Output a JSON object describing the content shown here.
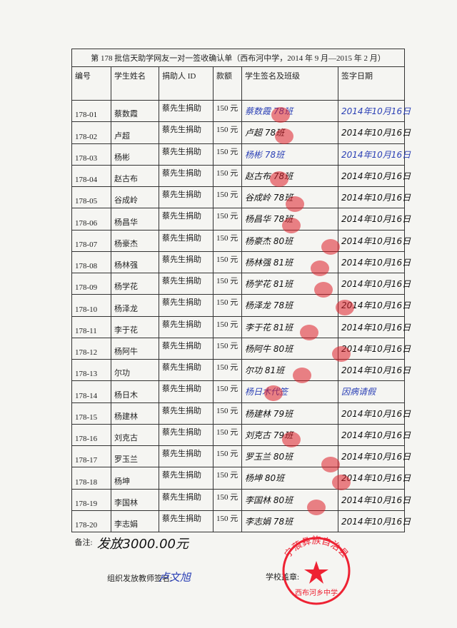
{
  "title": "第 178 批信天助学网友一对一签收确认单（西布河中学，2014 年 9 月—2015 年 2 月）",
  "table": {
    "headers": [
      "编号",
      "学生姓名",
      "捐助人 ID",
      "款额",
      "学生签名及班级",
      "签字日期"
    ],
    "rows": [
      [
        "178-01",
        "蔡数霞",
        "蔡先生捐助",
        "150 元",
        "蔡数霞 78班",
        "2014年10月16日"
      ],
      [
        "178-02",
        "卢超",
        "蔡先生捐助",
        "150 元",
        "卢超 78班",
        "2014年10月16日"
      ],
      [
        "178-03",
        "杨彬",
        "蔡先生捐助",
        "150 元",
        "杨彬 78班",
        "2014年10月16日"
      ],
      [
        "178-04",
        "赵古布",
        "蔡先生捐助",
        "150 元",
        "赵古布 78班",
        "2014年10月16日"
      ],
      [
        "178-05",
        "谷成岭",
        "蔡先生捐助",
        "150 元",
        "谷成岭 78班",
        "2014年10月16日"
      ],
      [
        "178-06",
        "杨昌华",
        "蔡先生捐助",
        "150 元",
        "杨昌华 78班",
        "2014年10月16日"
      ],
      [
        "178-07",
        "杨豪杰",
        "蔡先生捐助",
        "150 元",
        "杨豪杰 80班",
        "2014年10月16日"
      ],
      [
        "178-08",
        "杨林强",
        "蔡先生捐助",
        "150 元",
        "杨林强 81班",
        "2014年10月16日"
      ],
      [
        "178-09",
        "杨学花",
        "蔡先生捐助",
        "150 元",
        "杨学花 81班",
        "2014年10月16日"
      ],
      [
        "178-10",
        "杨泽龙",
        "蔡先生捐助",
        "150 元",
        "杨泽龙 78班",
        "2014年10月16日"
      ],
      [
        "178-11",
        "李于花",
        "蔡先生捐助",
        "150 元",
        "李于花 81班",
        "2014年10月16日"
      ],
      [
        "178-12",
        "杨阿牛",
        "蔡先生捐助",
        "150 元",
        "杨阿牛 80班",
        "2014年10月16日"
      ],
      [
        "178-13",
        "尔功",
        "蔡先生捐助",
        "150 元",
        "尔功 81班",
        "2014年10月16日"
      ],
      [
        "178-14",
        "杨日木",
        "蔡先生捐助",
        "150 元",
        "杨日木代签",
        "因病请假"
      ],
      [
        "178-15",
        "杨建林",
        "蔡先生捐助",
        "150 元",
        "杨建林 79班",
        "2014年10月16日"
      ],
      [
        "178-16",
        "刘克古",
        "蔡先生捐助",
        "150 元",
        "刘克古 79班",
        "2014年10月16日"
      ],
      [
        "178-17",
        "罗玉兰",
        "蔡先生捐助",
        "150 元",
        "罗玉兰 80班",
        "2014年10月16日"
      ],
      [
        "178-18",
        "杨坤",
        "蔡先生捐助",
        "150 元",
        "杨坤 80班",
        "2014年10月16日"
      ],
      [
        "178-19",
        "李国林",
        "蔡先生捐助",
        "150 元",
        "李国林 80班",
        "2014年10月16日"
      ],
      [
        "178-20",
        "李志娟",
        "蔡先生捐助",
        "150 元",
        "李志娟 78班",
        "2014年10月16日"
      ]
    ]
  },
  "remarks": {
    "label": "备注:",
    "text": "发放3000.00元"
  },
  "footer": {
    "teacher_label": "组织发放教师签名:",
    "teacher_signature": "卢文旭",
    "school_label": "学校盖章:",
    "stamp_top": "宁蒗彝族自治县",
    "stamp_bottom": "西布河乡中学"
  }
}
